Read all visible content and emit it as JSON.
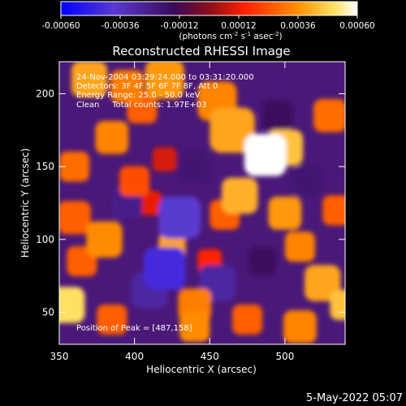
{
  "colorbar": {
    "ticks": [
      "-0.00060",
      "-0.00036",
      "-0.00012",
      "0.00012",
      "0.00036",
      "0.00060"
    ],
    "units_prefix": "(photons cm",
    "units_exp1": "-2",
    "units_mid": " s",
    "units_exp2": "-1",
    "units_mid2": " asec",
    "units_exp3": "-2",
    "units_suffix": ")",
    "range": [
      -0.0006,
      0.0006
    ]
  },
  "title": "Reconstructed RHESSI Image",
  "annotations": {
    "time_range": "24-Nov-2004 03:29:24.000 to 03:31:20.000",
    "detectors": "Detectors: 3F 4F 5F 6F 7F 8F, Att 0",
    "energy": "Energy Range: 25.0 - 50.0 keV",
    "clean": "Clean     Total counts: 1.97E+03",
    "peak": "Position of Peak = [487,158]"
  },
  "footer_date": "5-May-2022 05:07",
  "chart_data": {
    "type": "heatmap",
    "title": "Reconstructed RHESSI Image",
    "xlabel": "Heliocentric X (arcsec)",
    "ylabel": "Heliocentric Y (arcsec)",
    "xlim": [
      350,
      540
    ],
    "ylim": [
      28,
      222
    ],
    "xticks": [
      350,
      400,
      450,
      500
    ],
    "yticks": [
      50,
      100,
      150,
      200
    ],
    "peak": [
      487,
      158
    ],
    "colormap": [
      "#0000ff",
      "#6a33c8",
      "#3a0a5a",
      "#9a1010",
      "#ff2a00",
      "#ff8a00",
      "#ffe060",
      "#ffffff"
    ]
  },
  "blobs": [
    {
      "x": 487,
      "y": 158,
      "v": 0.0006,
      "r": 14
    },
    {
      "x": 500,
      "y": 163,
      "v": 0.00045,
      "r": 12
    },
    {
      "x": 465,
      "y": 175,
      "v": 0.0004,
      "r": 15
    },
    {
      "x": 455,
      "y": 195,
      "v": 0.00035,
      "r": 13
    },
    {
      "x": 470,
      "y": 130,
      "v": 0.00042,
      "r": 12
    },
    {
      "x": 460,
      "y": 117,
      "v": 0.0003,
      "r": 10
    },
    {
      "x": 500,
      "y": 118,
      "v": 0.00038,
      "r": 11
    },
    {
      "x": 510,
      "y": 95,
      "v": 0.00035,
      "r": 10
    },
    {
      "x": 535,
      "y": 120,
      "v": 0.0003,
      "r": 10
    },
    {
      "x": 530,
      "y": 185,
      "v": 0.00032,
      "r": 11
    },
    {
      "x": 420,
      "y": 210,
      "v": 0.00038,
      "r": 13
    },
    {
      "x": 395,
      "y": 205,
      "v": 0.00034,
      "r": 11
    },
    {
      "x": 370,
      "y": 210,
      "v": 0.0004,
      "r": 12
    },
    {
      "x": 405,
      "y": 190,
      "v": 0.0003,
      "r": 10
    },
    {
      "x": 385,
      "y": 170,
      "v": 0.00035,
      "r": 11
    },
    {
      "x": 360,
      "y": 150,
      "v": 0.00032,
      "r": 10
    },
    {
      "x": 400,
      "y": 140,
      "v": 0.00028,
      "r": 10
    },
    {
      "x": 360,
      "y": 115,
      "v": 0.0003,
      "r": 11
    },
    {
      "x": 380,
      "y": 100,
      "v": 0.00036,
      "r": 12
    },
    {
      "x": 365,
      "y": 85,
      "v": 0.0003,
      "r": 10
    },
    {
      "x": 355,
      "y": 55,
      "v": 0.0005,
      "r": 12
    },
    {
      "x": 385,
      "y": 45,
      "v": 0.0003,
      "r": 10
    },
    {
      "x": 440,
      "y": 55,
      "v": 0.00034,
      "r": 11
    },
    {
      "x": 440,
      "y": 40,
      "v": 0.00036,
      "r": 10
    },
    {
      "x": 475,
      "y": 45,
      "v": 0.0003,
      "r": 10
    },
    {
      "x": 510,
      "y": 40,
      "v": 0.00035,
      "r": 11
    },
    {
      "x": 525,
      "y": 70,
      "v": 0.0004,
      "r": 12
    },
    {
      "x": 540,
      "y": 55,
      "v": 0.00045,
      "r": 10
    },
    {
      "x": 425,
      "y": 95,
      "v": 0.0004,
      "r": 9
    },
    {
      "x": 450,
      "y": 85,
      "v": 0.00022,
      "r": 8
    },
    {
      "x": 410,
      "y": 125,
      "v": 0.0002,
      "r": 8
    },
    {
      "x": 420,
      "y": 155,
      "v": 0.00018,
      "r": 8
    },
    {
      "x": 430,
      "y": 115,
      "v": -0.0004,
      "r": 14
    },
    {
      "x": 420,
      "y": 80,
      "v": -0.00045,
      "r": 14
    },
    {
      "x": 410,
      "y": 65,
      "v": -0.0003,
      "r": 12
    },
    {
      "x": 455,
      "y": 70,
      "v": -0.0003,
      "r": 12
    },
    {
      "x": 395,
      "y": 125,
      "v": -0.00025,
      "r": 10
    },
    {
      "x": 440,
      "y": 150,
      "v": -0.0002,
      "r": 10
    },
    {
      "x": 495,
      "y": 185,
      "v": -0.00015,
      "r": 10
    },
    {
      "x": 515,
      "y": 140,
      "v": -0.0002,
      "r": 10
    },
    {
      "x": 485,
      "y": 85,
      "v": -0.00015,
      "r": 9
    }
  ]
}
